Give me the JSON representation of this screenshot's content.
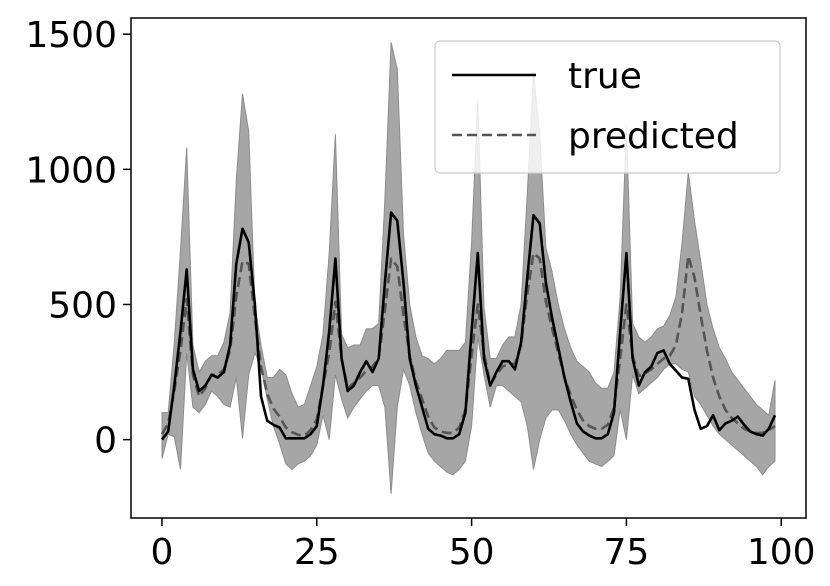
{
  "chart_data": {
    "type": "line",
    "title": "",
    "xlabel": "",
    "ylabel": "",
    "xlim": [
      -5,
      104
    ],
    "ylim": [
      -290,
      1560
    ],
    "x_ticks": [
      0,
      25,
      50,
      75,
      100
    ],
    "y_ticks": [
      0,
      500,
      1000,
      1500
    ],
    "grid": false,
    "legend_position": "top-right",
    "colors": {
      "true": "#000000",
      "predicted": "#555555",
      "band": "#a6a6a6",
      "band_edge": "#8c8c8c"
    },
    "x": [
      0,
      1,
      2,
      3,
      4,
      5,
      6,
      7,
      8,
      9,
      10,
      11,
      12,
      13,
      14,
      15,
      16,
      17,
      18,
      19,
      20,
      21,
      22,
      23,
      24,
      25,
      26,
      27,
      28,
      29,
      30,
      31,
      32,
      33,
      34,
      35,
      36,
      37,
      38,
      39,
      40,
      41,
      42,
      43,
      44,
      45,
      46,
      47,
      48,
      49,
      50,
      51,
      52,
      53,
      54,
      55,
      56,
      57,
      58,
      59,
      60,
      61,
      62,
      63,
      64,
      65,
      66,
      67,
      68,
      69,
      70,
      71,
      72,
      73,
      74,
      75,
      76,
      77,
      78,
      79,
      80,
      81,
      82,
      83,
      84,
      85,
      86,
      87,
      88,
      89,
      90,
      91,
      92,
      93,
      94,
      95,
      96,
      97,
      98,
      99
    ],
    "series": [
      {
        "name": "true",
        "style": "solid",
        "values": [
          0,
          30,
          200,
          400,
          630,
          260,
          180,
          200,
          240,
          230,
          250,
          350,
          650,
          780,
          730,
          500,
          160,
          70,
          55,
          45,
          5,
          5,
          5,
          5,
          20,
          50,
          200,
          400,
          670,
          300,
          180,
          200,
          250,
          290,
          250,
          300,
          580,
          840,
          810,
          580,
          300,
          200,
          120,
          40,
          20,
          15,
          5,
          5,
          20,
          100,
          400,
          690,
          300,
          200,
          250,
          290,
          290,
          260,
          360,
          600,
          830,
          800,
          580,
          450,
          340,
          230,
          140,
          60,
          30,
          15,
          5,
          5,
          20,
          100,
          400,
          690,
          300,
          200,
          250,
          270,
          320,
          330,
          280,
          255,
          230,
          225,
          110,
          40,
          50,
          90,
          35,
          60,
          70,
          85,
          55,
          30,
          20,
          15,
          40,
          90
        ]
      },
      {
        "name": "predicted",
        "style": "dashed",
        "values": [
          20,
          60,
          180,
          330,
          520,
          240,
          160,
          190,
          240,
          240,
          260,
          330,
          530,
          660,
          650,
          450,
          270,
          170,
          115,
          85,
          45,
          28,
          18,
          15,
          35,
          75,
          200,
          320,
          510,
          300,
          190,
          210,
          230,
          255,
          270,
          300,
          480,
          670,
          640,
          460,
          310,
          215,
          150,
          85,
          45,
          30,
          25,
          25,
          45,
          110,
          310,
          500,
          320,
          205,
          240,
          270,
          280,
          280,
          350,
          540,
          690,
          670,
          510,
          410,
          320,
          230,
          165,
          110,
          70,
          50,
          40,
          40,
          55,
          120,
          300,
          500,
          310,
          235,
          245,
          260,
          280,
          300,
          310,
          350,
          470,
          680,
          600,
          460,
          330,
          230,
          160,
          110,
          80,
          60,
          40,
          30,
          25,
          25,
          35,
          50
        ]
      }
    ],
    "uncertainty_band": {
      "upper": [
        100,
        100,
        360,
        700,
        1080,
        350,
        250,
        290,
        310,
        310,
        360,
        470,
        960,
        1280,
        1140,
        500,
        350,
        230,
        230,
        260,
        240,
        170,
        120,
        130,
        200,
        270,
        390,
        690,
        1130,
        390,
        340,
        350,
        350,
        410,
        410,
        430,
        890,
        1470,
        1370,
        760,
        500,
        380,
        310,
        300,
        280,
        300,
        330,
        330,
        330,
        360,
        730,
        1260,
        490,
        300,
        300,
        350,
        380,
        380,
        500,
        910,
        1360,
        1130,
        710,
        620,
        500,
        410,
        340,
        290,
        270,
        250,
        210,
        190,
        190,
        250,
        530,
        1160,
        430,
        380,
        360,
        380,
        410,
        420,
        460,
        530,
        730,
        990,
        810,
        660,
        500,
        410,
        340,
        300,
        250,
        220,
        190,
        160,
        130,
        110,
        90,
        220
      ],
      "lower": [
        -70,
        20,
        10,
        -110,
        320,
        120,
        100,
        130,
        180,
        160,
        130,
        120,
        230,
        5,
        240,
        320,
        270,
        150,
        50,
        -15,
        -90,
        -110,
        -90,
        -80,
        -60,
        -20,
        90,
        0,
        240,
        150,
        80,
        120,
        150,
        180,
        200,
        200,
        120,
        -200,
        120,
        260,
        200,
        100,
        20,
        -50,
        -80,
        -100,
        -120,
        -130,
        -110,
        -80,
        50,
        380,
        240,
        120,
        200,
        200,
        180,
        160,
        140,
        50,
        -110,
        0,
        80,
        110,
        110,
        70,
        20,
        -20,
        -50,
        -80,
        -90,
        -100,
        -80,
        -60,
        110,
        0,
        240,
        170,
        190,
        210,
        230,
        260,
        280,
        280,
        260,
        250,
        160,
        130,
        90,
        50,
        20,
        0,
        -20,
        -40,
        -60,
        -80,
        -100,
        -130,
        -100,
        -80
      ]
    }
  }
}
